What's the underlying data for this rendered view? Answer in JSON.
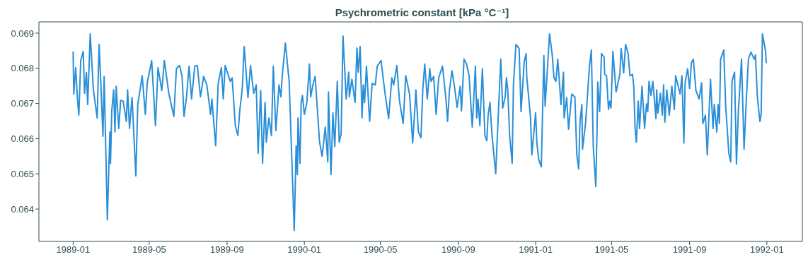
{
  "chart_data": {
    "type": "line",
    "title": "Psychrometric constant [kPa °C⁻¹]",
    "xlim": [
      "1988-11-08",
      "1992-02-26"
    ],
    "xticks": [
      "1989-01",
      "1989-05",
      "1989-09",
      "1990-01",
      "1990-05",
      "1990-09",
      "1991-01",
      "1991-05",
      "1991-09",
      "1992-01"
    ],
    "ylim": [
      0.06308,
      0.06932
    ],
    "yticks": [
      0.064,
      0.065,
      0.066,
      0.067,
      0.068,
      0.069
    ],
    "grid": false,
    "legend": false,
    "marker": "none",
    "line_style": "solid",
    "x": [
      "1989-01-01",
      "1989-01-02",
      "1989-01-05",
      "1989-01-08",
      "1989-01-10",
      "1989-01-13",
      "1989-01-17",
      "1989-01-19",
      "1989-01-22",
      "1989-01-24",
      "1989-01-28",
      "1989-02-02",
      "1989-02-08",
      "1989-02-11",
      "1989-02-14",
      "1989-02-17",
      "1989-02-19",
      "1989-02-24",
      "1989-02-28",
      "1989-03-01",
      "1989-03-03",
      "1989-03-06",
      "1989-03-08",
      "1989-03-10",
      "1989-03-14",
      "1989-03-17",
      "1989-03-21",
      "1989-03-26",
      "1989-03-28",
      "1989-03-31",
      "1989-04-04",
      "1989-04-10",
      "1989-04-13",
      "1989-04-17",
      "1989-04-20",
      "1989-04-25",
      "1989-04-28",
      "1989-05-05",
      "1989-05-11",
      "1989-05-15",
      "1989-05-21",
      "1989-05-25",
      "1989-06-01",
      "1989-06-09",
      "1989-06-13",
      "1989-06-18",
      "1989-06-22",
      "1989-06-25",
      "1989-06-29",
      "1989-07-03",
      "1989-07-07",
      "1989-07-12",
      "1989-07-16",
      "1989-07-21",
      "1989-07-26",
      "1989-07-31",
      "1989-08-06",
      "1989-08-08",
      "1989-08-14",
      "1989-08-18",
      "1989-08-23",
      "1989-08-26",
      "1989-08-29",
      "1989-09-06",
      "1989-09-09",
      "1989-09-14",
      "1989-09-18",
      "1989-09-21",
      "1989-09-25",
      "1989-09-28",
      "1989-10-04",
      "1989-10-08",
      "1989-10-13",
      "1989-10-17",
      "1989-10-20",
      "1989-10-24",
      "1989-10-27",
      "1989-10-31",
      "1989-11-02",
      "1989-11-06",
      "1989-11-10",
      "1989-11-13",
      "1989-11-17",
      "1989-11-22",
      "1989-11-25",
      "1989-11-27",
      "1989-12-02",
      "1989-12-08",
      "1989-12-13",
      "1989-12-16",
      "1989-12-19",
      "1989-12-21",
      "1989-12-22",
      "1989-12-25",
      "1989-12-27",
      "1989-12-29",
      "1990-01-01",
      "1990-01-05",
      "1990-01-09",
      "1990-01-11",
      "1990-01-15",
      "1990-01-18",
      "1990-01-20",
      "1990-01-25",
      "1990-01-27",
      "1990-01-29",
      "1990-02-03",
      "1990-02-07",
      "1990-02-08",
      "1990-02-12",
      "1990-02-15",
      "1990-02-18",
      "1990-02-22",
      "1990-02-25",
      "1990-02-28",
      "1990-03-03",
      "1990-03-08",
      "1990-03-12",
      "1990-03-13",
      "1990-03-17",
      "1990-03-22",
      "1990-03-25",
      "1990-03-27",
      "1990-03-30",
      "1990-04-02",
      "1990-04-04",
      "1990-04-06",
      "1990-04-09",
      "1990-04-14",
      "1990-04-18",
      "1990-04-23",
      "1990-04-26",
      "1990-05-02",
      "1990-05-08",
      "1990-05-14",
      "1990-05-19",
      "1990-05-22",
      "1990-05-27",
      "1990-05-31",
      "1990-06-06",
      "1990-06-10",
      "1990-06-16",
      "1990-06-21",
      "1990-06-25",
      "1990-06-26",
      "1990-06-30",
      "1990-07-04",
      "1990-07-07",
      "1990-07-10",
      "1990-07-14",
      "1990-07-18",
      "1990-07-20",
      "1990-07-24",
      "1990-07-28",
      "1990-08-01",
      "1990-08-07",
      "1990-08-13",
      "1990-08-15",
      "1990-08-18",
      "1990-08-22",
      "1990-08-26",
      "1990-08-30",
      "1990-09-04",
      "1990-09-06",
      "1990-09-10",
      "1990-09-14",
      "1990-09-18",
      "1990-09-23",
      "1990-09-28",
      "1990-09-30",
      "1990-10-02",
      "1990-10-05",
      "1990-10-09",
      "1990-10-13",
      "1990-10-16",
      "1990-10-18",
      "1990-10-21",
      "1990-10-24",
      "1990-10-30",
      "1990-11-07",
      "1990-11-10",
      "1990-11-14",
      "1990-11-16",
      "1990-11-18",
      "1990-11-21",
      "1990-11-25",
      "1990-11-27",
      "1990-12-01",
      "1990-12-06",
      "1990-12-09",
      "1990-12-14",
      "1990-12-17",
      "1990-12-18",
      "1990-12-24",
      "1990-12-26",
      "1991-01-01",
      "1991-01-03",
      "1991-01-06",
      "1991-01-10",
      "1991-01-14",
      "1991-01-16",
      "1991-01-23",
      "1991-01-27",
      "1991-01-30",
      "1991-02-02",
      "1991-02-05",
      "1991-02-10",
      "1991-02-14",
      "1991-02-15",
      "1991-02-19",
      "1991-02-22",
      "1991-02-27",
      "1991-03-04",
      "1991-03-07",
      "1991-03-10",
      "1991-03-12",
      "1991-03-15",
      "1991-03-16",
      "1991-03-21",
      "1991-03-27",
      "1991-03-30",
      "1991-04-02",
      "1991-04-06",
      "1991-04-08",
      "1991-04-09",
      "1991-04-12",
      "1991-04-15",
      "1991-04-19",
      "1991-04-20",
      "1991-04-23",
      "1991-04-26",
      "1991-04-28",
      "1991-04-30",
      "1991-05-03",
      "1991-05-08",
      "1991-05-14",
      "1991-05-16",
      "1991-05-20",
      "1991-05-23",
      "1991-05-27",
      "1991-05-30",
      "1991-06-03",
      "1991-06-05",
      "1991-06-07",
      "1991-06-09",
      "1991-06-12",
      "1991-06-14",
      "1991-06-18",
      "1991-06-22",
      "1991-06-25",
      "1991-06-27",
      "1991-06-29",
      "1991-07-02",
      "1991-07-05",
      "1991-07-10",
      "1991-07-11",
      "1991-07-13",
      "1991-07-17",
      "1991-07-20",
      "1991-07-22",
      "1991-07-24",
      "1991-07-27",
      "1991-07-31",
      "1991-08-04",
      "1991-08-08",
      "1991-08-10",
      "1991-08-17",
      "1991-08-20",
      "1991-08-23",
      "1991-08-25",
      "1991-08-29",
      "1991-09-01",
      "1991-09-04",
      "1991-09-07",
      "1991-09-11",
      "1991-09-16",
      "1991-09-20",
      "1991-09-22",
      "1991-09-26",
      "1991-09-29",
      "1991-10-04",
      "1991-10-08",
      "1991-10-10",
      "1991-10-14",
      "1991-10-16",
      "1991-10-18",
      "1991-10-20",
      "1991-10-25",
      "1991-10-28",
      "1991-11-02",
      "1991-11-05",
      "1991-11-07",
      "1991-11-11",
      "1991-11-14",
      "1991-11-17",
      "1991-11-22",
      "1991-11-26",
      "1991-11-30",
      "1991-12-03",
      "1991-12-07",
      "1991-12-12",
      "1991-12-14",
      "1991-12-17",
      "1991-12-21",
      "1991-12-23",
      "1991-12-25",
      "1991-12-30",
      "1991-12-31"
    ],
    "series": [
      {
        "color": "#2a8fd8",
        "values": [
          0.06846,
          0.06727,
          0.06802,
          0.06709,
          0.06667,
          0.06822,
          0.06848,
          0.06729,
          0.06788,
          0.06697,
          0.06898,
          0.06739,
          0.06659,
          0.06868,
          0.06747,
          0.06607,
          0.06777,
          0.06369,
          0.06619,
          0.0653,
          0.06679,
          0.06739,
          0.06619,
          0.06749,
          0.06629,
          0.06709,
          0.06707,
          0.06649,
          0.06739,
          0.06629,
          0.06717,
          0.06494,
          0.06697,
          0.06743,
          0.06779,
          0.06669,
          0.06759,
          0.06822,
          0.06637,
          0.06802,
          0.06737,
          0.06822,
          0.06729,
          0.06663,
          0.06799,
          0.06808,
          0.06777,
          0.06663,
          0.06719,
          0.06806,
          0.06713,
          0.06806,
          0.06808,
          0.06719,
          0.06777,
          0.06753,
          0.06669,
          0.06713,
          0.0658,
          0.06757,
          0.06802,
          0.06713,
          0.06808,
          0.06763,
          0.06773,
          0.06637,
          0.06609,
          0.06679,
          0.06743,
          0.06862,
          0.06717,
          0.06808,
          0.06729,
          0.06753,
          0.06558,
          0.06737,
          0.0653,
          0.06703,
          0.0659,
          0.06659,
          0.06609,
          0.06806,
          0.06623,
          0.06753,
          0.06719,
          0.06777,
          0.06872,
          0.06763,
          0.06498,
          0.06339,
          0.0658,
          0.06498,
          0.06659,
          0.0653,
          0.06703,
          0.06723,
          0.06669,
          0.06703,
          0.06812,
          0.06719,
          0.06757,
          0.06777,
          0.06723,
          0.0659,
          0.0657,
          0.0655,
          0.06633,
          0.06534,
          0.06733,
          0.06498,
          0.06673,
          0.06578,
          0.06763,
          0.0659,
          0.06613,
          0.06892,
          0.06713,
          0.06789,
          0.06719,
          0.06769,
          0.06703,
          0.06858,
          0.06789,
          0.06862,
          0.06659,
          0.06753,
          0.06703,
          0.06806,
          0.06649,
          0.06757,
          0.06753,
          0.06806,
          0.06822,
          0.06733,
          0.06657,
          0.06773,
          0.06753,
          0.06808,
          0.06709,
          0.06643,
          0.06779,
          0.06727,
          0.06588,
          0.06703,
          0.06739,
          0.06619,
          0.06603,
          0.06743,
          0.06812,
          0.06713,
          0.06799,
          0.06763,
          0.06777,
          0.06669,
          0.06773,
          0.06806,
          0.06703,
          0.06649,
          0.06737,
          0.06793,
          0.06747,
          0.06689,
          0.06749,
          0.06679,
          0.06826,
          0.06812,
          0.06779,
          0.06633,
          0.06806,
          0.06659,
          0.06713,
          0.06637,
          0.06799,
          0.06609,
          0.06594,
          0.06667,
          0.06703,
          0.06613,
          0.065,
          0.06826,
          0.06687,
          0.06719,
          0.06773,
          0.06739,
          0.06609,
          0.0653,
          0.06753,
          0.06868,
          0.06856,
          0.06677,
          0.06818,
          0.06842,
          0.06777,
          0.06659,
          0.06554,
          0.06673,
          0.06588,
          0.0654,
          0.0652,
          0.06836,
          0.06693,
          0.06898,
          0.06842,
          0.06773,
          0.06763,
          0.06826,
          0.06697,
          0.06789,
          0.06659,
          0.06717,
          0.06627,
          0.06727,
          0.06719,
          0.06554,
          0.06514,
          0.06647,
          0.06697,
          0.0657,
          0.06647,
          0.06806,
          0.06852,
          0.06578,
          0.06464,
          0.06627,
          0.06761,
          0.06677,
          0.06842,
          0.06832,
          0.06783,
          0.06779,
          0.06683,
          0.06707,
          0.06687,
          0.06848,
          0.06733,
          0.06783,
          0.06856,
          0.06787,
          0.06868,
          0.06842,
          0.06779,
          0.06783,
          0.06747,
          0.06629,
          0.0659,
          0.06707,
          0.06629,
          0.06749,
          0.06629,
          0.06699,
          0.06677,
          0.06763,
          0.06723,
          0.06763,
          0.06657,
          0.06739,
          0.06673,
          0.06729,
          0.06667,
          0.06753,
          0.06647,
          0.06739,
          0.06667,
          0.06749,
          0.06683,
          0.06779,
          0.06727,
          0.06779,
          0.06588,
          0.06759,
          0.06799,
          0.06743,
          0.06816,
          0.06826,
          0.06737,
          0.06713,
          0.06759,
          0.06643,
          0.06667,
          0.06554,
          0.06769,
          0.06629,
          0.06697,
          0.06619,
          0.06697,
          0.06643,
          0.06826,
          0.06852,
          0.06693,
          0.06558,
          0.06534,
          0.06763,
          0.06789,
          0.06528,
          0.06677,
          0.06826,
          0.0657,
          0.06727,
          0.06828,
          0.06846,
          0.06826,
          0.06838,
          0.06719,
          0.06649,
          0.06669,
          0.06898,
          0.06848,
          0.06816
        ]
      }
    ]
  }
}
